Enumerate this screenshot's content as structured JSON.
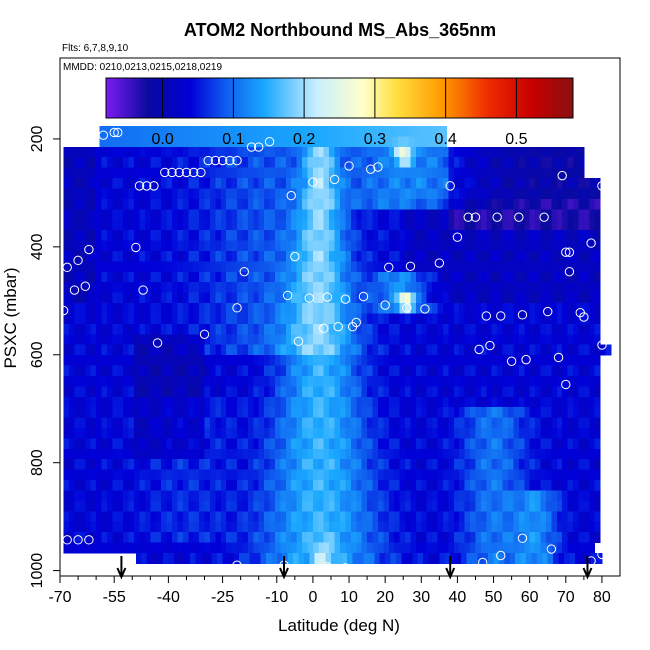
{
  "chart_data": {
    "type": "heatmap",
    "title": "ATOM2 Northbound MS_Abs_365nm",
    "flights_label": "Flts: 6,7,8,9,10",
    "dates_label": "MMDD: 0210,0213,0215,0218,0219",
    "xlabel": "Latitude (deg N)",
    "ylabel": "PSXC (mbar)",
    "xlim": [
      -70,
      85
    ],
    "ylim": [
      1010,
      50
    ],
    "x_ticks": [
      -70,
      -55,
      -40,
      -25,
      -10,
      0,
      10,
      20,
      30,
      40,
      50,
      60,
      70,
      80
    ],
    "x_tick_labels": [
      "-70",
      "-55",
      "-40",
      "-25",
      "-10",
      "0",
      "10",
      "20",
      "30",
      "40",
      "50",
      "60",
      "70",
      "80"
    ],
    "x_minor_ticks": [
      -65,
      -60,
      -50,
      -45,
      -35,
      -30,
      -20,
      -15,
      -5,
      5,
      15,
      25,
      35,
      45,
      55,
      65,
      75
    ],
    "y_ticks": [
      200,
      400,
      600,
      800,
      1000
    ],
    "y_tick_labels": [
      "200",
      "400",
      "600",
      "800",
      "1000"
    ],
    "colorbar": {
      "min": -0.08,
      "max": 0.58,
      "ticks": [
        0.0,
        0.1,
        0.2,
        0.3,
        0.4,
        0.5
      ],
      "tick_labels": [
        "0.0",
        "0.1",
        "0.2",
        "0.3",
        "0.4",
        "0.5"
      ],
      "colors": [
        "#7c1cf2",
        "#0a0a9e",
        "#0000d8",
        "#1060f0",
        "#1aa8ff",
        "#c8eeff",
        "#ffffcc",
        "#ffe040",
        "#ff9a00",
        "#ee2a00",
        "#c80000",
        "#8a1010"
      ]
    },
    "descent_arrows_lat": [
      -53,
      -8,
      38,
      76
    ],
    "sample_points": [
      {
        "lat": -58,
        "p": 193
      },
      {
        "lat": -55,
        "p": 188
      },
      {
        "lat": -54,
        "p": 188
      },
      {
        "lat": -41,
        "p": 262
      },
      {
        "lat": -39,
        "p": 262
      },
      {
        "lat": -37,
        "p": 262
      },
      {
        "lat": -35,
        "p": 262
      },
      {
        "lat": -33,
        "p": 262
      },
      {
        "lat": -31,
        "p": 262
      },
      {
        "lat": -29,
        "p": 240
      },
      {
        "lat": -27,
        "p": 240
      },
      {
        "lat": -25,
        "p": 240
      },
      {
        "lat": -23,
        "p": 240
      },
      {
        "lat": -21,
        "p": 240
      },
      {
        "lat": -17,
        "p": 215
      },
      {
        "lat": -15,
        "p": 215
      },
      {
        "lat": -12,
        "p": 205
      },
      {
        "lat": -48,
        "p": 287
      },
      {
        "lat": -46,
        "p": 287
      },
      {
        "lat": -44,
        "p": 287
      },
      {
        "lat": -6,
        "p": 305
      },
      {
        "lat": 0,
        "p": 280
      },
      {
        "lat": 6,
        "p": 275
      },
      {
        "lat": 10,
        "p": 250
      },
      {
        "lat": 16,
        "p": 256
      },
      {
        "lat": 18,
        "p": 252
      },
      {
        "lat": 38,
        "p": 287
      },
      {
        "lat": 43,
        "p": 345
      },
      {
        "lat": 45,
        "p": 345
      },
      {
        "lat": 51,
        "p": 345
      },
      {
        "lat": 57,
        "p": 345
      },
      {
        "lat": 64,
        "p": 345
      },
      {
        "lat": 69,
        "p": 268
      },
      {
        "lat": 80,
        "p": 287
      },
      {
        "lat": 77,
        "p": 393
      },
      {
        "lat": 70,
        "p": 410
      },
      {
        "lat": 71,
        "p": 410
      },
      {
        "lat": 71,
        "p": 446
      },
      {
        "lat": 40,
        "p": 382
      },
      {
        "lat": -49,
        "p": 401
      },
      {
        "lat": -68,
        "p": 438
      },
      {
        "lat": -65,
        "p": 425
      },
      {
        "lat": -62,
        "p": 405
      },
      {
        "lat": -63,
        "p": 473
      },
      {
        "lat": -66,
        "p": 480
      },
      {
        "lat": -47,
        "p": 480
      },
      {
        "lat": -5,
        "p": 418
      },
      {
        "lat": -19,
        "p": 446
      },
      {
        "lat": -7,
        "p": 490
      },
      {
        "lat": -1,
        "p": 495
      },
      {
        "lat": 4,
        "p": 493
      },
      {
        "lat": 9,
        "p": 497
      },
      {
        "lat": 14,
        "p": 492
      },
      {
        "lat": 21,
        "p": 438
      },
      {
        "lat": 27,
        "p": 436
      },
      {
        "lat": 35,
        "p": 430
      },
      {
        "lat": 26,
        "p": 513
      },
      {
        "lat": 31,
        "p": 515
      },
      {
        "lat": 20,
        "p": 508
      },
      {
        "lat": -69,
        "p": 518
      },
      {
        "lat": -21,
        "p": 513
      },
      {
        "lat": 7,
        "p": 548
      },
      {
        "lat": 11,
        "p": 548
      },
      {
        "lat": 3,
        "p": 551
      },
      {
        "lat": 12,
        "p": 540
      },
      {
        "lat": -30,
        "p": 562
      },
      {
        "lat": -43,
        "p": 578
      },
      {
        "lat": -4,
        "p": 575
      },
      {
        "lat": 48,
        "p": 528
      },
      {
        "lat": 52,
        "p": 528
      },
      {
        "lat": 58,
        "p": 526
      },
      {
        "lat": 65,
        "p": 520
      },
      {
        "lat": 74,
        "p": 522
      },
      {
        "lat": 75,
        "p": 530
      },
      {
        "lat": 46,
        "p": 590
      },
      {
        "lat": 49,
        "p": 583
      },
      {
        "lat": 55,
        "p": 612
      },
      {
        "lat": 59,
        "p": 609
      },
      {
        "lat": 68,
        "p": 605
      },
      {
        "lat": 80,
        "p": 582
      },
      {
        "lat": 70,
        "p": 655
      },
      {
        "lat": -65,
        "p": 943
      },
      {
        "lat": -62,
        "p": 943
      },
      {
        "lat": -68,
        "p": 943
      },
      {
        "lat": -44,
        "p": 1000
      },
      {
        "lat": -33,
        "p": 1000
      },
      {
        "lat": -21,
        "p": 990
      },
      {
        "lat": -8,
        "p": 990
      },
      {
        "lat": -7,
        "p": 1000
      },
      {
        "lat": 4,
        "p": 993
      },
      {
        "lat": 9,
        "p": 995
      },
      {
        "lat": 20,
        "p": 1000
      },
      {
        "lat": 26,
        "p": 1000
      },
      {
        "lat": 33,
        "p": 1000
      },
      {
        "lat": 47,
        "p": 985
      },
      {
        "lat": 52,
        "p": 972
      },
      {
        "lat": 58,
        "p": 940
      },
      {
        "lat": 66,
        "p": 960
      },
      {
        "lat": 77,
        "p": 982
      },
      {
        "lat": 80,
        "p": 970
      }
    ]
  }
}
